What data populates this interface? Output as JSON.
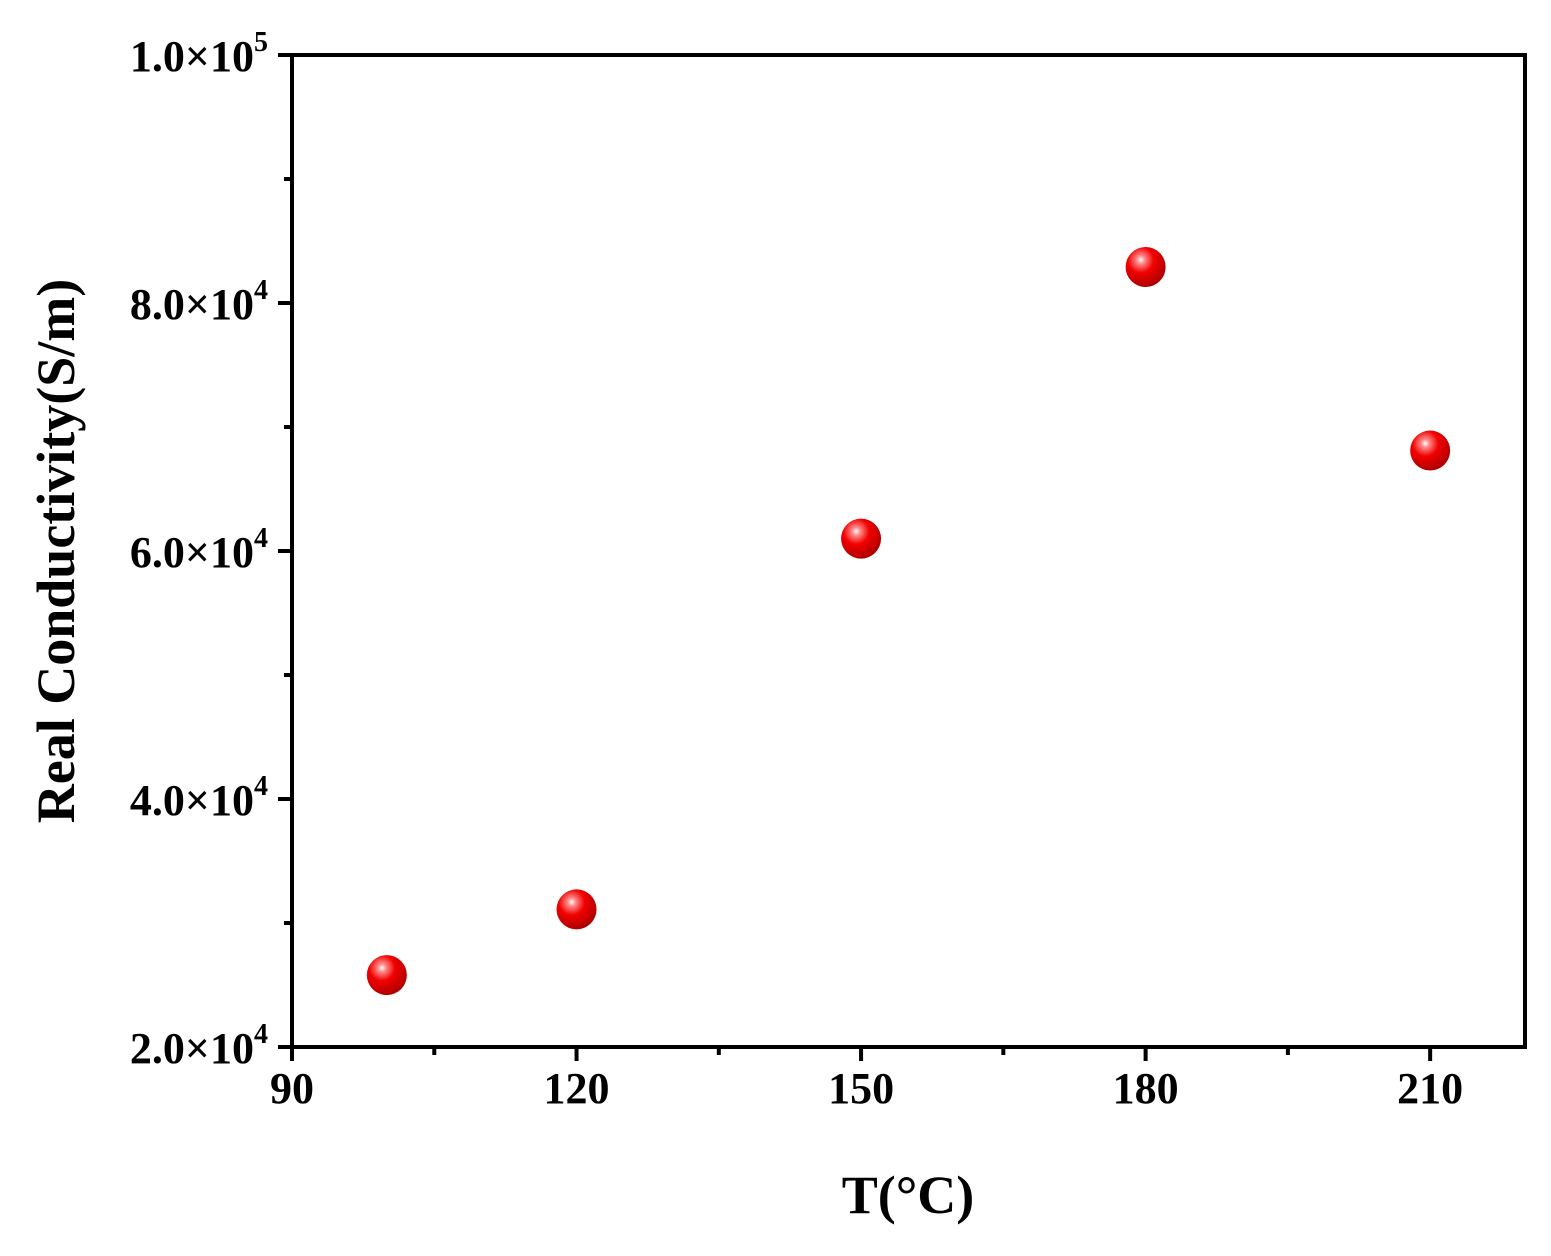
{
  "chart_data": {
    "type": "scatter",
    "xlabel": "T(°C)",
    "ylabel": "Real Conductivity(S/m)",
    "xlim": [
      90,
      220
    ],
    "ylim": [
      20000,
      100000
    ],
    "x_ticks": [
      {
        "value": 90,
        "label": "90"
      },
      {
        "value": 120,
        "label": "120"
      },
      {
        "value": 150,
        "label": "150"
      },
      {
        "value": 180,
        "label": "180"
      },
      {
        "value": 210,
        "label": "210"
      }
    ],
    "x_minor_ticks": [
      105,
      135,
      165,
      195
    ],
    "y_ticks": [
      {
        "value": 20000,
        "mantissa": "2.0×10",
        "exponent": "4"
      },
      {
        "value": 40000,
        "mantissa": "4.0×10",
        "exponent": "4"
      },
      {
        "value": 60000,
        "mantissa": "6.0×10",
        "exponent": "4"
      },
      {
        "value": 80000,
        "mantissa": "8.0×10",
        "exponent": "4"
      },
      {
        "value": 100000,
        "mantissa": "1.0×10",
        "exponent": "5"
      }
    ],
    "y_minor_ticks": [
      30000,
      50000,
      70000,
      90000
    ],
    "points": [
      {
        "x": 100,
        "y": 25800
      },
      {
        "x": 120,
        "y": 31100
      },
      {
        "x": 150,
        "y": 61000
      },
      {
        "x": 180,
        "y": 82900
      },
      {
        "x": 210,
        "y": 68100
      }
    ],
    "marker": "sphere",
    "marker_color": "#e8000b",
    "grid": false,
    "legend": "none"
  }
}
